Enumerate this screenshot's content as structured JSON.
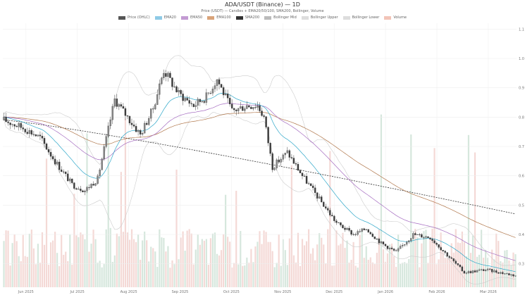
{
  "chart_data": {
    "type": "line",
    "title": "ADA/USDT (Binance) — 1D",
    "subtitle": "Price (USDT) — Candles + EMA20/50/100, SMA200, Bollinger, Volume",
    "legend": [
      {
        "label": "Price (OHLC)",
        "color": "#555555"
      },
      {
        "label": "EMA20",
        "color": "#8ecae6"
      },
      {
        "label": "EMA50",
        "color": "#c39bd3"
      },
      {
        "label": "EMA100",
        "color": "#d9a37a"
      },
      {
        "label": "SMA200",
        "color": "#333333"
      },
      {
        "label": "Bollinger Mid",
        "color": "#bbbbbb"
      },
      {
        "label": "Bollinger Upper",
        "color": "#dddddd"
      },
      {
        "label": "Bollinger Lower",
        "color": "#dddddd"
      },
      {
        "label": "Volume",
        "color": "#f2c4b8"
      }
    ],
    "x_ticks": [
      "Jun 2025",
      "Jul 2025",
      "Aug 2025",
      "Sep 2025",
      "Oct 2025",
      "Nov 2025",
      "Dec 2025",
      "Jan 2026",
      "Feb 2026",
      "Mar 2026"
    ],
    "y_ticks": [
      "1.1",
      "1.0",
      "0.9",
      "0.8",
      "0.7",
      "0.6",
      "0.5",
      "0.4",
      "0.3"
    ],
    "ylim": [
      0.22,
      1.12
    ],
    "up_color": "#6aa884",
    "down_color": "#d9786a",
    "anchors": [
      {
        "d": 0,
        "p": 0.79
      },
      {
        "d": 10,
        "p": 0.76
      },
      {
        "d": 17,
        "p": 0.73
      },
      {
        "d": 24,
        "p": 0.65
      },
      {
        "d": 32,
        "p": 0.57
      },
      {
        "d": 38,
        "p": 0.55
      },
      {
        "d": 44,
        "p": 0.59
      },
      {
        "d": 52,
        "p": 0.86
      },
      {
        "d": 58,
        "p": 0.8
      },
      {
        "d": 64,
        "p": 0.74
      },
      {
        "d": 70,
        "p": 0.83
      },
      {
        "d": 75,
        "p": 0.96
      },
      {
        "d": 82,
        "p": 0.88
      },
      {
        "d": 89,
        "p": 0.84
      },
      {
        "d": 95,
        "p": 0.87
      },
      {
        "d": 100,
        "p": 0.93
      },
      {
        "d": 107,
        "p": 0.82
      },
      {
        "d": 114,
        "p": 0.84
      },
      {
        "d": 119,
        "p": 0.84
      },
      {
        "d": 122,
        "p": 0.8
      },
      {
        "d": 126,
        "p": 0.63
      },
      {
        "d": 133,
        "p": 0.68
      },
      {
        "d": 140,
        "p": 0.6
      },
      {
        "d": 148,
        "p": 0.52
      },
      {
        "d": 156,
        "p": 0.44
      },
      {
        "d": 164,
        "p": 0.4
      },
      {
        "d": 170,
        "p": 0.42
      },
      {
        "d": 177,
        "p": 0.37
      },
      {
        "d": 184,
        "p": 0.34
      },
      {
        "d": 192,
        "p": 0.4
      },
      {
        "d": 200,
        "p": 0.39
      },
      {
        "d": 208,
        "p": 0.33
      },
      {
        "d": 216,
        "p": 0.27
      },
      {
        "d": 226,
        "p": 0.28
      },
      {
        "d": 240,
        "p": 0.26
      }
    ],
    "sma200_start": 0.79,
    "sma200_end": 0.47
  }
}
